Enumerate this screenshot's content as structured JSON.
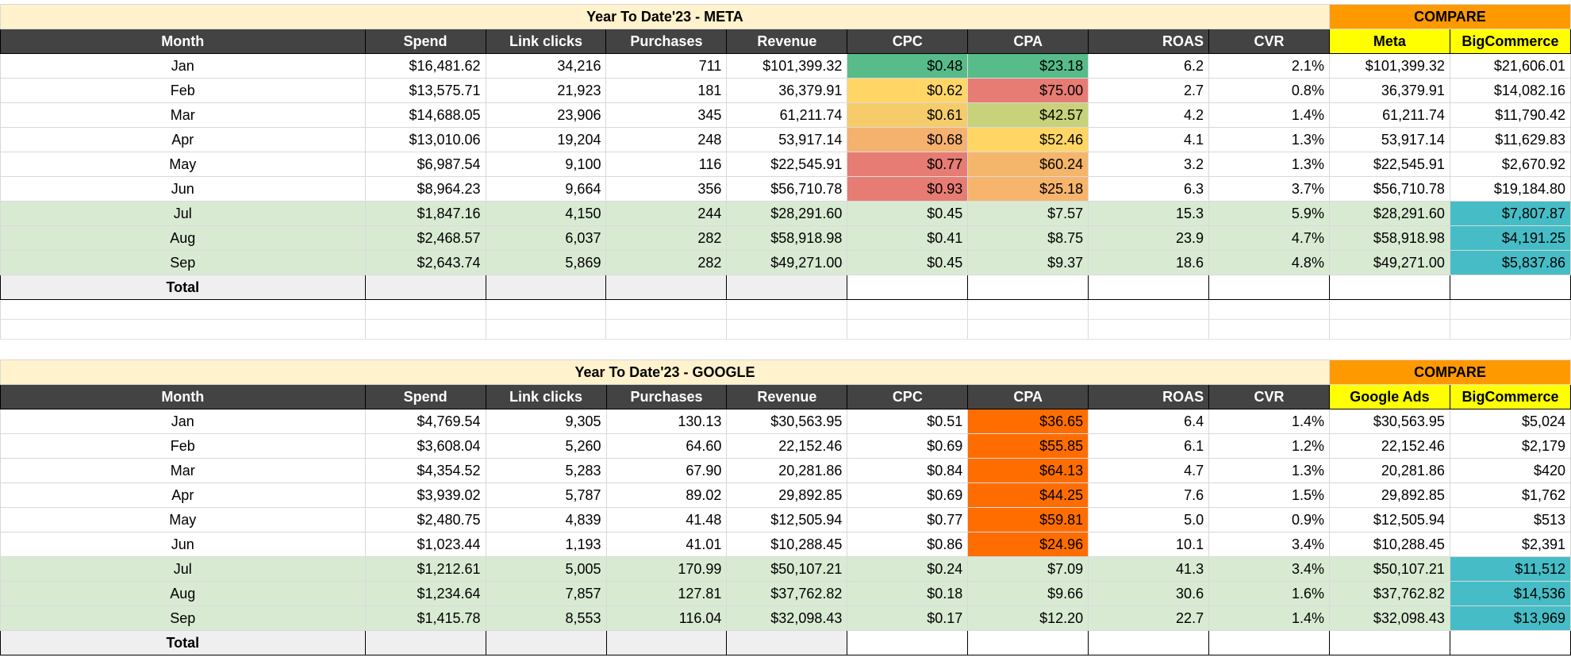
{
  "tables": [
    {
      "title": "Year To Date'23 - META",
      "compare_label": "COMPARE",
      "headers": [
        "Month",
        "Spend",
        "Link clicks",
        "Purchases",
        "Revenue",
        "CPC",
        "CPA",
        "ROAS",
        "CVR",
        "Meta",
        "BigCommerce"
      ],
      "rows": [
        [
          "Jan",
          "$16,481.62",
          "34,216",
          "711",
          "$101,399.32",
          "$0.48",
          "$23.18",
          "6.2",
          "2.1%",
          "$101,399.32",
          "$21,606.01"
        ],
        [
          "Feb",
          "$13,575.71",
          "21,923",
          "181",
          "36,379.91",
          "$0.62",
          "$75.00",
          "2.7",
          "0.8%",
          "36,379.91",
          "$14,082.16"
        ],
        [
          "Mar",
          "$14,688.05",
          "23,906",
          "345",
          "61,211.74",
          "$0.61",
          "$42.57",
          "4.2",
          "1.4%",
          "61,211.74",
          "$11,790.42"
        ],
        [
          "Apr",
          "$13,010.06",
          "19,204",
          "248",
          "53,917.14",
          "$0.68",
          "$52.46",
          "4.1",
          "1.3%",
          "53,917.14",
          "$11,629.83"
        ],
        [
          "May",
          "$6,987.54",
          "9,100",
          "116",
          "$22,545.91",
          "$0.77",
          "$60.24",
          "3.2",
          "1.3%",
          "$22,545.91",
          "$2,670.92"
        ],
        [
          "Jun",
          "$8,964.23",
          "9,664",
          "356",
          "$56,710.78",
          "$0.93",
          "$25.18",
          "6.3",
          "3.7%",
          "$56,710.78",
          "$19,184.80"
        ],
        [
          "Jul",
          "$1,847.16",
          "4,150",
          "244",
          "$28,291.60",
          "$0.45",
          "$7.57",
          "15.3",
          "5.9%",
          "$28,291.60",
          "$7,807.87"
        ],
        [
          "Aug",
          "$2,468.57",
          "6,037",
          "282",
          "$58,918.98",
          "$0.41",
          "$8.75",
          "23.9",
          "4.7%",
          "$58,918.98",
          "$4,191.25"
        ],
        [
          "Sep",
          "$2,643.74",
          "5,869",
          "282",
          "$49,271.00",
          "$0.45",
          "$9.37",
          "18.6",
          "4.8%",
          "$49,271.00",
          "$5,837.86"
        ]
      ],
      "total_label": "Total"
    },
    {
      "title": "Year To Date'23 - GOOGLE",
      "compare_label": "COMPARE",
      "headers": [
        "Month",
        "Spend",
        "Link clicks",
        "Purchases",
        "Revenue",
        "CPC",
        "CPA",
        "ROAS",
        "CVR",
        "Google Ads",
        "BigCommerce"
      ],
      "rows": [
        [
          "Jan",
          "$4,769.54",
          "9,305",
          "130.13",
          "$30,563.95",
          "$0.51",
          "$36.65",
          "6.4",
          "1.4%",
          "$30,563.95",
          "$5,024"
        ],
        [
          "Feb",
          "$3,608.04",
          "5,260",
          "64.60",
          "22,152.46",
          "$0.69",
          "$55.85",
          "6.1",
          "1.2%",
          "22,152.46",
          "$2,179"
        ],
        [
          "Mar",
          "$4,354.52",
          "5,283",
          "67.90",
          "20,281.86",
          "$0.84",
          "$64.13",
          "4.7",
          "1.3%",
          "20,281.86",
          "$420"
        ],
        [
          "Apr",
          "$3,939.02",
          "5,787",
          "89.02",
          "29,892.85",
          "$0.69",
          "$44.25",
          "7.6",
          "1.5%",
          "29,892.85",
          "$1,762"
        ],
        [
          "May",
          "$2,480.75",
          "4,839",
          "41.48",
          "$12,505.94",
          "$0.77",
          "$59.81",
          "5.0",
          "0.9%",
          "$12,505.94",
          "$513"
        ],
        [
          "Jun",
          "$1,023.44",
          "1,193",
          "41.01",
          "$10,288.45",
          "$0.86",
          "$24.96",
          "10.1",
          "3.4%",
          "$10,288.45",
          "$2,391"
        ],
        [
          "Jul",
          "$1,212.61",
          "5,005",
          "170.99",
          "$50,107.21",
          "$0.24",
          "$7.09",
          "41.3",
          "3.4%",
          "$50,107.21",
          "$11,512"
        ],
        [
          "Aug",
          "$1,234.64",
          "7,857",
          "127.81",
          "$37,762.82",
          "$0.18",
          "$9.66",
          "30.6",
          "1.6%",
          "$37,762.82",
          "$14,536"
        ],
        [
          "Sep",
          "$1,415.78",
          "8,553",
          "116.04",
          "$32,098.43",
          "$0.17",
          "$12.20",
          "22.7",
          "1.4%",
          "$32,098.43",
          "$13,969"
        ]
      ],
      "total_label": "Total"
    }
  ],
  "colors": {
    "title_bg": "#fff2cc",
    "compare_bg": "#ff9900",
    "header_bg": "#434343",
    "compare_header_bg": "#ffff00",
    "highlight_row_bg": "#d9ead3",
    "bigcommerce_highlight": "#46bdc6",
    "google_cpa_bg": "#ff6d01",
    "meta_cpc_colors": [
      "#57bb8a",
      "#ffd666",
      "#f6cc6b",
      "#f5b16e",
      "#e67c73",
      "#e67c73"
    ],
    "meta_cpa_colors": [
      "#57bb8a",
      "#e67c73",
      "#c8d27a",
      "#ffd666",
      "#f4b66b",
      "#f6b46d"
    ]
  }
}
